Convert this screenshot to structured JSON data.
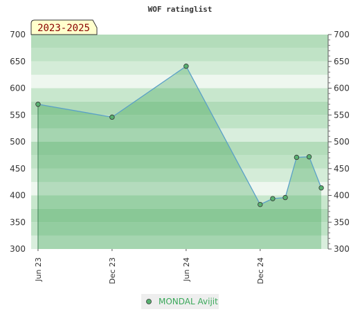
{
  "chart_data": {
    "type": "area",
    "title": "WOF ratinglist",
    "badge": "2023-2025",
    "ylim": [
      300,
      700
    ],
    "yticks": [
      300,
      350,
      400,
      450,
      500,
      550,
      600,
      650,
      700
    ],
    "xlim": [
      "2023-05-15",
      "2025-05-18"
    ],
    "xticks": [
      {
        "label": "Jun 23",
        "date": "2023-06-01"
      },
      {
        "label": "Dec 23",
        "date": "2023-12-01"
      },
      {
        "label": "Jun 24",
        "date": "2024-06-01"
      },
      {
        "label": "Dec 24",
        "date": "2024-12-01"
      }
    ],
    "grid": true,
    "legend_position": "bottom-center",
    "series": [
      {
        "name": "MONDAL Avijit",
        "color": "#5aa0c8",
        "marker_color": "#58b070",
        "points": [
          {
            "x": "2023-06-01",
            "y": 570
          },
          {
            "x": "2023-12-01",
            "y": 546
          },
          {
            "x": "2024-06-01",
            "y": 641
          },
          {
            "x": "2024-12-01",
            "y": 383
          },
          {
            "x": "2025-01-01",
            "y": 394
          },
          {
            "x": "2025-02-01",
            "y": 396
          },
          {
            "x": "2025-03-01",
            "y": 471
          },
          {
            "x": "2025-04-01",
            "y": 472
          },
          {
            "x": "2025-05-01",
            "y": 414
          }
        ]
      }
    ]
  }
}
